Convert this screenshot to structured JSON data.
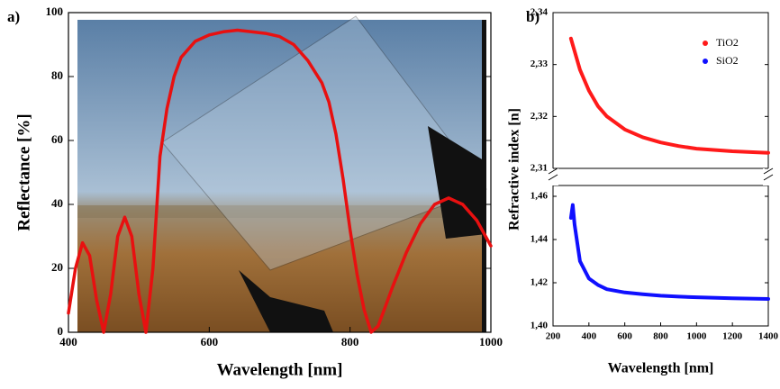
{
  "chart_data": [
    {
      "type": "line",
      "label": "a)",
      "xlabel": "Wavelength [nm]",
      "ylabel": "Reflectance [%]",
      "x": [
        400,
        410,
        420,
        430,
        440,
        450,
        460,
        470,
        480,
        490,
        500,
        510,
        520,
        530,
        540,
        550,
        560,
        580,
        600,
        620,
        640,
        660,
        680,
        700,
        720,
        740,
        760,
        770,
        780,
        790,
        800,
        810,
        820,
        830,
        840,
        850,
        860,
        880,
        900,
        920,
        940,
        960,
        980,
        1000
      ],
      "series": [
        {
          "color": "#e81010",
          "values": [
            6,
            20,
            28,
            24,
            10,
            0,
            12,
            30,
            36,
            30,
            12,
            0,
            20,
            55,
            70,
            80,
            86,
            91,
            93,
            94,
            94.5,
            94,
            93.5,
            92.5,
            90,
            85,
            78,
            72,
            62,
            48,
            32,
            18,
            7,
            0,
            2,
            8,
            14,
            25,
            34,
            40,
            42,
            40,
            35,
            27
          ]
        }
      ],
      "xlim": [
        400,
        1000
      ],
      "xticks": [
        400,
        600,
        800,
        1000
      ],
      "ylim": [
        0,
        100
      ],
      "yticks": [
        0,
        20,
        40,
        60,
        80,
        100
      ]
    },
    {
      "type": "line",
      "label": "b)",
      "xlabel": "Wavelength [nm]",
      "ylabel": "Refractive index [n]",
      "legend": "upper right",
      "broken_axis": true,
      "x": [
        300,
        310,
        320,
        350,
        400,
        450,
        500,
        600,
        700,
        800,
        900,
        1000,
        1200,
        1400
      ],
      "series": [
        {
          "name": "TiO2",
          "color": "#ff1a1a",
          "axis": "upper",
          "values": [
            2.335,
            2.3338,
            2.3326,
            2.329,
            2.325,
            2.322,
            2.32,
            2.3175,
            2.316,
            2.315,
            2.3143,
            2.3138,
            2.3133,
            2.313
          ]
        },
        {
          "name": "SiO2",
          "color": "#1010ff",
          "axis": "lower",
          "values": [
            1.45,
            1.456,
            1.447,
            1.43,
            1.422,
            1.419,
            1.417,
            1.4155,
            1.4147,
            1.414,
            1.4136,
            1.4133,
            1.4128,
            1.4125
          ]
        }
      ],
      "xlim": [
        200,
        1400
      ],
      "xticks": [
        200,
        400,
        600,
        800,
        1000,
        1200,
        1400
      ],
      "ylim": [
        1.4,
        1.465
      ],
      "yticks": [
        {
          "value": 1.4,
          "label": "1,40"
        },
        {
          "value": 1.42,
          "label": "1,42"
        },
        {
          "value": 1.44,
          "label": "1,44"
        },
        {
          "value": 1.46,
          "label": "1,46"
        }
      ],
      "ylim_upper": [
        2.31,
        2.34
      ],
      "yticks_upper": [
        {
          "value": 2.31,
          "label": "2,31"
        },
        {
          "value": 2.32,
          "label": "2,32"
        },
        {
          "value": 2.33,
          "label": "2,33"
        },
        {
          "value": 2.34,
          "label": "2,34"
        }
      ]
    }
  ]
}
